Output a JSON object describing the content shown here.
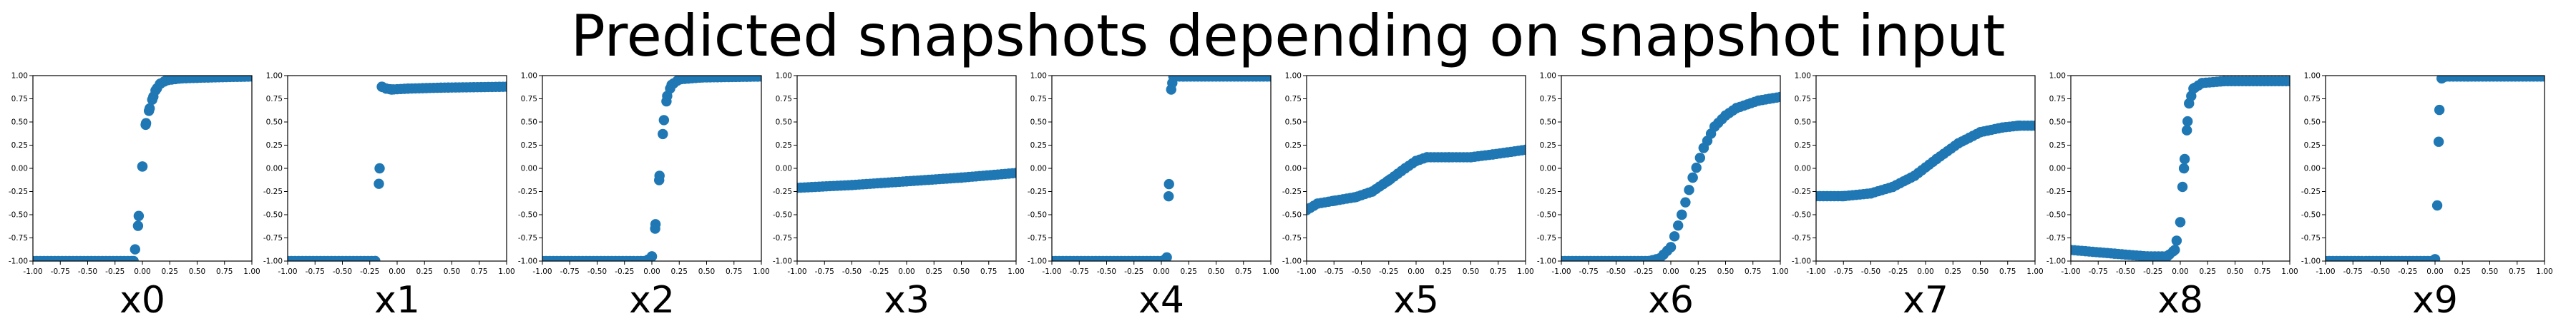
{
  "title": "Predicted snapshots depending on snapshot input",
  "colors": {
    "series": "#1f77b4",
    "axes": "#000000",
    "background": "#ffffff"
  },
  "chart_data": [
    {
      "type": "scatter",
      "xlabel": "x0",
      "xlim": [
        -1,
        1
      ],
      "ylim": [
        -1,
        1
      ],
      "grid": false,
      "xtick_values": [
        -1,
        -0.75,
        -0.5,
        -0.25,
        0,
        0.25,
        0.5,
        0.75,
        1
      ],
      "xtick_labels": [
        "-1.00",
        "-0.75",
        "-0.50",
        "-0.25",
        "0.00",
        "0.25",
        "0.50",
        "0.75",
        "1.00"
      ],
      "ytick_values": [
        -1,
        -0.75,
        -0.5,
        -0.25,
        0,
        0.25,
        0.5,
        0.75,
        1
      ],
      "ytick_labels": [
        "-1.00",
        "-0.75",
        "-0.50",
        "-0.25",
        "0.00",
        "0.25",
        "0.50",
        "0.75",
        "1.00"
      ],
      "curve": [
        [
          -1,
          -1.0
        ],
        [
          -0.08,
          -1.0
        ],
        [
          -0.04,
          -0.62
        ],
        [
          0.0,
          0.02
        ],
        [
          0.03,
          0.47
        ],
        [
          0.06,
          0.62
        ],
        [
          0.09,
          0.74
        ],
        [
          0.12,
          0.84
        ],
        [
          0.16,
          0.91
        ],
        [
          0.22,
          0.95
        ],
        [
          0.35,
          0.97
        ],
        [
          0.6,
          0.98
        ],
        [
          1.0,
          0.99
        ]
      ]
    },
    {
      "type": "scatter",
      "xlabel": "x1",
      "xlim": [
        -1,
        1
      ],
      "ylim": [
        -1,
        1
      ],
      "grid": false,
      "xtick_values": [
        -1,
        -0.75,
        -0.5,
        -0.25,
        0,
        0.25,
        0.5,
        0.75,
        1
      ],
      "xtick_labels": [
        "-1.00",
        "-0.75",
        "-0.50",
        "-0.25",
        "0.00",
        "0.25",
        "0.50",
        "0.75",
        "1.00"
      ],
      "ytick_values": [
        -1,
        -0.75,
        -0.5,
        -0.25,
        0,
        0.25,
        0.5,
        0.75,
        1
      ],
      "ytick_labels": [
        "-1.00",
        "-0.75",
        "-0.50",
        "-0.25",
        "0.00",
        "0.25",
        "0.50",
        "0.75",
        "1.00"
      ],
      "curve": [
        [
          -1,
          -1.0
        ],
        [
          -0.2,
          -1.0
        ],
        [
          -0.16,
          0.0
        ],
        [
          -0.14,
          0.88
        ],
        [
          -0.1,
          0.86
        ],
        [
          -0.05,
          0.85
        ],
        [
          0.1,
          0.86
        ],
        [
          0.4,
          0.87
        ],
        [
          1.0,
          0.88
        ]
      ]
    },
    {
      "type": "scatter",
      "xlabel": "x2",
      "xlim": [
        -1,
        1
      ],
      "ylim": [
        -1,
        1
      ],
      "grid": false,
      "xtick_values": [
        -1,
        -0.75,
        -0.5,
        -0.25,
        0,
        0.25,
        0.5,
        0.75,
        1
      ],
      "xtick_labels": [
        "-1.00",
        "-0.75",
        "-0.50",
        "-0.25",
        "0.00",
        "0.25",
        "0.50",
        "0.75",
        "1.00"
      ],
      "ytick_values": [
        -1,
        -0.75,
        -0.5,
        -0.25,
        0,
        0.25,
        0.5,
        0.75,
        1
      ],
      "ytick_labels": [
        "-1.00",
        "-0.75",
        "-0.50",
        "-0.25",
        "0.00",
        "0.25",
        "0.50",
        "0.75",
        "1.00"
      ],
      "curve": [
        [
          -1,
          -1.0
        ],
        [
          -0.05,
          -1.0
        ],
        [
          0.0,
          -0.95
        ],
        [
          0.03,
          -0.65
        ],
        [
          0.07,
          -0.08
        ],
        [
          0.11,
          0.52
        ],
        [
          0.14,
          0.78
        ],
        [
          0.18,
          0.9
        ],
        [
          0.25,
          0.96
        ],
        [
          0.45,
          0.98
        ],
        [
          1.0,
          0.99
        ]
      ]
    },
    {
      "type": "scatter",
      "xlabel": "x3",
      "xlim": [
        -1,
        1
      ],
      "ylim": [
        -1,
        1
      ],
      "grid": false,
      "xtick_values": [
        -1,
        -0.75,
        -0.5,
        -0.25,
        0,
        0.25,
        0.5,
        0.75,
        1
      ],
      "xtick_labels": [
        "-1.00",
        "-0.75",
        "-0.50",
        "-0.25",
        "0.00",
        "0.25",
        "0.50",
        "0.75",
        "1.00"
      ],
      "ytick_values": [
        -1,
        -0.75,
        -0.5,
        -0.25,
        0,
        0.25,
        0.5,
        0.75,
        1
      ],
      "ytick_labels": [
        "-1.00",
        "-0.75",
        "-0.50",
        "-0.25",
        "0.00",
        "0.25",
        "0.50",
        "0.75",
        "1.00"
      ],
      "curve": [
        [
          -1,
          -0.21
        ],
        [
          -0.5,
          -0.18
        ],
        [
          0.0,
          -0.14
        ],
        [
          0.5,
          -0.1
        ],
        [
          1.0,
          -0.05
        ]
      ]
    },
    {
      "type": "scatter",
      "xlabel": "x4",
      "xlim": [
        -1,
        1
      ],
      "ylim": [
        -1,
        1
      ],
      "grid": false,
      "xtick_values": [
        -1,
        -0.75,
        -0.5,
        -0.25,
        0,
        0.25,
        0.5,
        0.75,
        1
      ],
      "xtick_labels": [
        "-1.00",
        "-0.75",
        "-0.50",
        "-0.25",
        "0.00",
        "0.25",
        "0.50",
        "0.75",
        "1.00"
      ],
      "ytick_values": [
        -1,
        -0.75,
        -0.5,
        -0.25,
        0,
        0.25,
        0.5,
        0.75,
        1
      ],
      "ytick_labels": [
        "-1.00",
        "-0.75",
        "-0.50",
        "-0.25",
        "0.00",
        "0.25",
        "0.50",
        "0.75",
        "1.00"
      ],
      "curve": [
        [
          -1,
          -1.0
        ],
        [
          0.02,
          -1.0
        ],
        [
          0.05,
          -0.96
        ],
        [
          0.07,
          -0.17
        ],
        [
          0.09,
          0.85
        ],
        [
          0.11,
          0.99
        ],
        [
          0.2,
          0.99
        ],
        [
          1.0,
          0.99
        ]
      ]
    },
    {
      "type": "scatter",
      "xlabel": "x5",
      "xlim": [
        -1,
        1
      ],
      "ylim": [
        -1,
        1
      ],
      "grid": false,
      "xtick_values": [
        -1,
        -0.75,
        -0.5,
        -0.25,
        0,
        0.25,
        0.5,
        0.75,
        1
      ],
      "xtick_labels": [
        "-1.00",
        "-0.75",
        "-0.50",
        "-0.25",
        "0.00",
        "0.25",
        "0.50",
        "0.75",
        "1.00"
      ],
      "ytick_values": [
        -1,
        -0.75,
        -0.5,
        -0.25,
        0,
        0.25,
        0.5,
        0.75,
        1
      ],
      "ytick_labels": [
        "-1.00",
        "-0.75",
        "-0.50",
        "-0.25",
        "0.00",
        "0.25",
        "0.50",
        "0.75",
        "1.00"
      ],
      "curve": [
        [
          -1,
          -0.45
        ],
        [
          -0.9,
          -0.38
        ],
        [
          -0.75,
          -0.35
        ],
        [
          -0.55,
          -0.31
        ],
        [
          -0.4,
          -0.25
        ],
        [
          -0.25,
          -0.13
        ],
        [
          -0.1,
          0.0
        ],
        [
          0.0,
          0.08
        ],
        [
          0.1,
          0.12
        ],
        [
          0.3,
          0.12
        ],
        [
          0.5,
          0.12
        ],
        [
          0.7,
          0.15
        ],
        [
          1.0,
          0.2
        ]
      ]
    },
    {
      "type": "scatter",
      "xlabel": "x6",
      "xlim": [
        -1,
        1
      ],
      "ylim": [
        -1,
        1
      ],
      "grid": false,
      "xtick_values": [
        -1,
        -0.75,
        -0.5,
        -0.25,
        0,
        0.25,
        0.5,
        0.75,
        1
      ],
      "xtick_labels": [
        "-1.00",
        "-0.75",
        "-0.50",
        "-0.25",
        "0.00",
        "0.25",
        "0.50",
        "0.75",
        "1.00"
      ],
      "ytick_values": [
        -1,
        -0.75,
        -0.5,
        -0.25,
        0,
        0.25,
        0.5,
        0.75,
        1
      ],
      "ytick_labels": [
        "-1.00",
        "-0.75",
        "-0.50",
        "-0.25",
        "0.00",
        "0.25",
        "0.50",
        "0.75",
        "1.00"
      ],
      "curve": [
        [
          -1,
          -1.0
        ],
        [
          -0.2,
          -1.0
        ],
        [
          -0.1,
          -0.97
        ],
        [
          0.0,
          -0.85
        ],
        [
          0.1,
          -0.5
        ],
        [
          0.2,
          -0.1
        ],
        [
          0.3,
          0.22
        ],
        [
          0.4,
          0.45
        ],
        [
          0.5,
          0.57
        ],
        [
          0.6,
          0.65
        ],
        [
          0.8,
          0.73
        ],
        [
          1.0,
          0.77
        ]
      ]
    },
    {
      "type": "scatter",
      "xlabel": "x7",
      "xlim": [
        -1,
        1
      ],
      "ylim": [
        -1,
        1
      ],
      "grid": false,
      "xtick_values": [
        -1,
        -0.75,
        -0.5,
        -0.25,
        0,
        0.25,
        0.5,
        0.75,
        1
      ],
      "xtick_labels": [
        "-1.00",
        "-0.75",
        "-0.50",
        "-0.25",
        "0.00",
        "0.25",
        "0.50",
        "0.75",
        "1.00"
      ],
      "ytick_values": [
        -1,
        -0.75,
        -0.5,
        -0.25,
        0,
        0.25,
        0.5,
        0.75,
        1
      ],
      "ytick_labels": [
        "-1.00",
        "-0.75",
        "-0.50",
        "-0.25",
        "0.00",
        "0.25",
        "0.50",
        "0.75",
        "1.00"
      ],
      "curve": [
        [
          -1,
          -0.3
        ],
        [
          -0.75,
          -0.3
        ],
        [
          -0.5,
          -0.27
        ],
        [
          -0.3,
          -0.2
        ],
        [
          -0.1,
          -0.08
        ],
        [
          0.1,
          0.1
        ],
        [
          0.3,
          0.27
        ],
        [
          0.5,
          0.39
        ],
        [
          0.7,
          0.44
        ],
        [
          0.85,
          0.46
        ],
        [
          1.0,
          0.46
        ]
      ]
    },
    {
      "type": "scatter",
      "xlabel": "x8",
      "xlim": [
        -1,
        1
      ],
      "ylim": [
        -1,
        1
      ],
      "grid": false,
      "xtick_values": [
        -1,
        -0.75,
        -0.5,
        -0.25,
        0,
        0.25,
        0.5,
        0.75,
        1
      ],
      "xtick_labels": [
        "-1.00",
        "-0.75",
        "-0.50",
        "-0.25",
        "0.00",
        "0.25",
        "0.50",
        "0.75",
        "1.00"
      ],
      "ytick_values": [
        -1,
        -0.75,
        -0.5,
        -0.25,
        0,
        0.25,
        0.5,
        0.75,
        1
      ],
      "ytick_labels": [
        "-1.00",
        "-0.75",
        "-0.50",
        "-0.25",
        "0.00",
        "0.25",
        "0.50",
        "0.75",
        "1.00"
      ],
      "curve": [
        [
          -1,
          -0.88
        ],
        [
          -0.6,
          -0.92
        ],
        [
          -0.3,
          -0.95
        ],
        [
          -0.12,
          -0.95
        ],
        [
          -0.05,
          -0.88
        ],
        [
          0.0,
          -0.58
        ],
        [
          0.02,
          -0.2
        ],
        [
          0.04,
          0.1
        ],
        [
          0.06,
          0.41
        ],
        [
          0.08,
          0.7
        ],
        [
          0.12,
          0.86
        ],
        [
          0.2,
          0.92
        ],
        [
          0.4,
          0.94
        ],
        [
          1.0,
          0.94
        ]
      ]
    },
    {
      "type": "scatter",
      "xlabel": "x9",
      "xlim": [
        -1,
        1
      ],
      "ylim": [
        -1,
        1
      ],
      "grid": false,
      "xtick_values": [
        -1,
        -0.75,
        -0.5,
        -0.25,
        0,
        0.25,
        0.5,
        0.75,
        1
      ],
      "xtick_labels": [
        "-1.00",
        "-0.75",
        "-0.50",
        "-0.25",
        "0.00",
        "0.25",
        "0.50",
        "0.75",
        "1.00"
      ],
      "ytick_values": [
        -1,
        -0.75,
        -0.5,
        -0.25,
        0,
        0.25,
        0.5,
        0.75,
        1
      ],
      "ytick_labels": [
        "-1.00",
        "-0.75",
        "-0.50",
        "-0.25",
        "0.00",
        "0.25",
        "0.50",
        "0.75",
        "1.00"
      ],
      "curve": [
        [
          -1,
          -1.0
        ],
        [
          -0.02,
          -1.0
        ],
        [
          0.0,
          -0.98
        ],
        [
          0.02,
          -0.4
        ],
        [
          0.04,
          0.63
        ],
        [
          0.06,
          0.97
        ],
        [
          0.1,
          0.99
        ],
        [
          0.3,
          0.99
        ],
        [
          1.0,
          0.99
        ]
      ]
    }
  ]
}
